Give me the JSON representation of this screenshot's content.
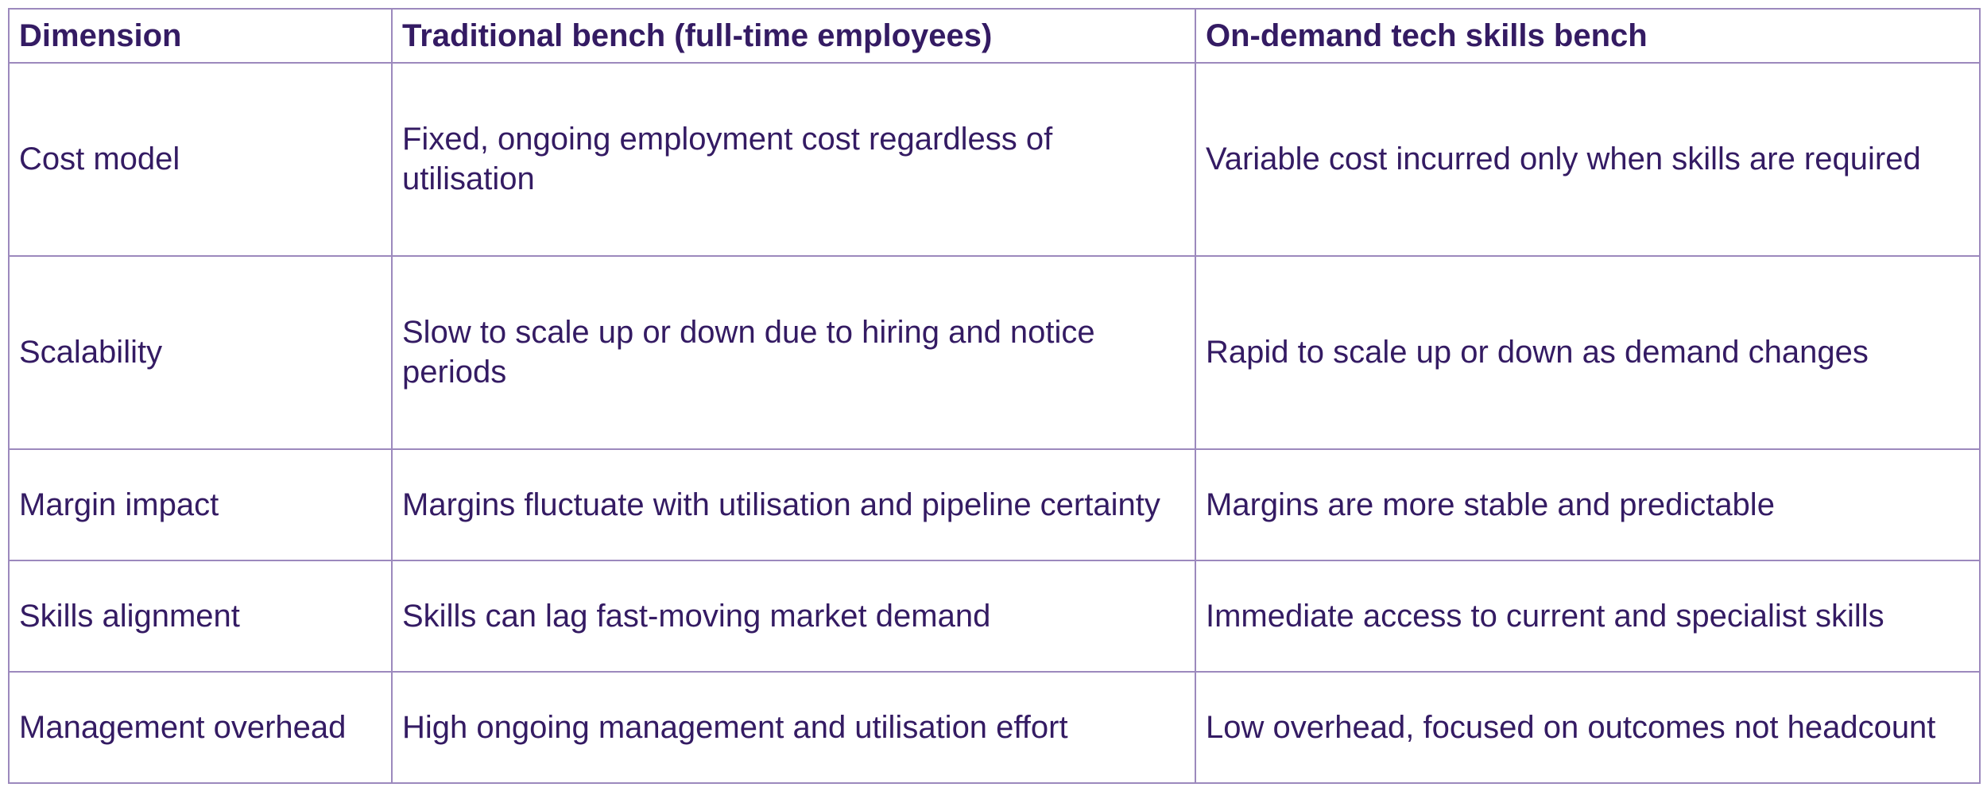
{
  "table": {
    "columns": [
      "Dimension",
      "Traditional bench (full-time employees)",
      "On-demand tech skills bench"
    ],
    "rows": [
      [
        "Cost model",
        "Fixed, ongoing employment cost regardless of\nutilisation",
        "Variable cost incurred only when skills are required"
      ],
      [
        "Scalability",
        "Slow to scale up or down due to hiring and notice\nperiods",
        "Rapid to scale up or down as demand changes"
      ],
      [
        "Margin impact",
        "Margins fluctuate with utilisation and pipeline certainty",
        "Margins are more stable and predictable"
      ],
      [
        "Skills alignment",
        "Skills can lag fast-moving market demand",
        "Immediate access to current and specialist skills"
      ],
      [
        "Management overhead",
        "High ongoing management and utilisation effort",
        "Low overhead, focused on outcomes not headcount"
      ]
    ]
  },
  "colors": {
    "text": "#341b63",
    "border": "#9c89bd",
    "background": "#ffffff"
  }
}
